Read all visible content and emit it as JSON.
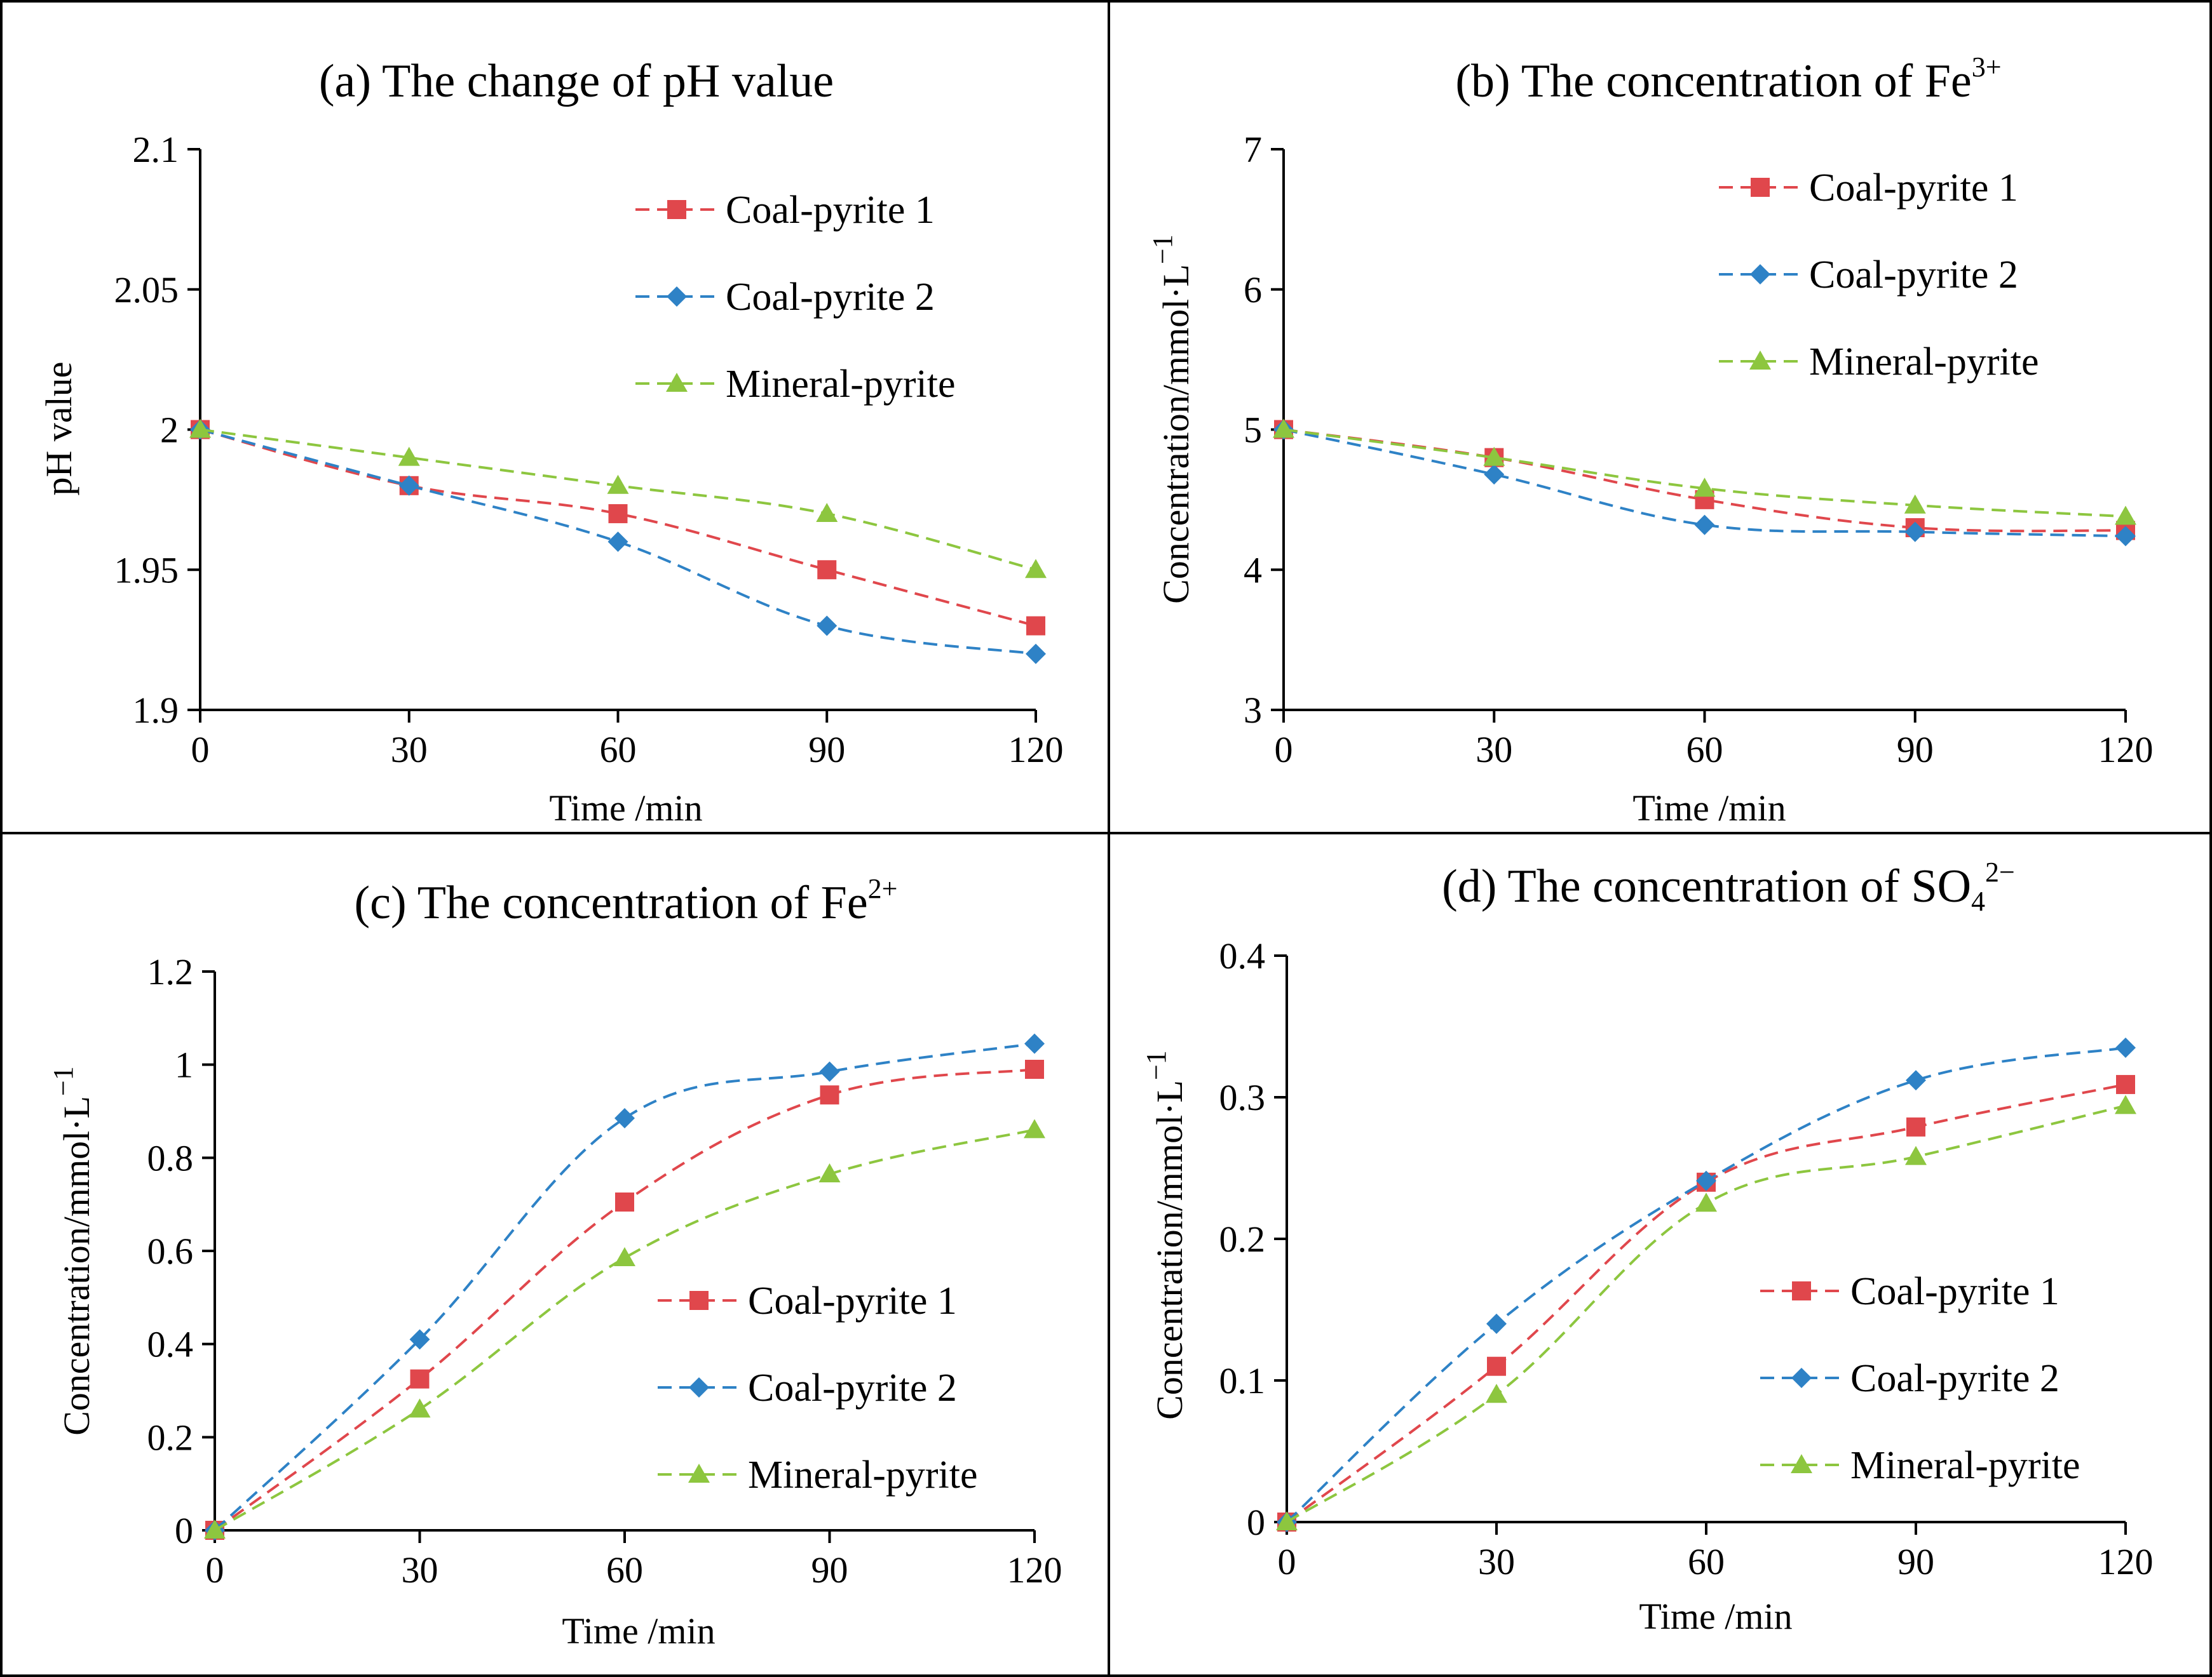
{
  "chart_data": [
    {
      "type": "line",
      "title": "(a) The change of pH value",
      "xlabel": "Time /min",
      "ylabel": "pH value",
      "x": [
        0,
        30,
        60,
        90,
        120
      ],
      "x_tick_labels": [
        "0",
        "30",
        "60",
        "90",
        "120"
      ],
      "ylim": [
        1.9,
        2.1
      ],
      "y_ticks": [
        1.9,
        1.95,
        2,
        2.05,
        2.1
      ],
      "y_tick_labels": [
        "1.9",
        "1.95",
        "2",
        "2.05",
        "2.1"
      ],
      "legend_position": "top-right",
      "smooth": true,
      "series": [
        {
          "name": "Coal-pyrite 1",
          "values": [
            2.0,
            1.98,
            1.97,
            1.95,
            1.93
          ],
          "color": "#e0474c",
          "marker": "square"
        },
        {
          "name": "Coal-pyrite 2",
          "values": [
            2.0,
            1.98,
            1.96,
            1.93,
            1.92
          ],
          "color": "#2e82c6",
          "marker": "diamond"
        },
        {
          "name": "Mineral-pyrite",
          "values": [
            2.0,
            1.99,
            1.98,
            1.97,
            1.95
          ],
          "color": "#8dc63f",
          "marker": "triangle"
        }
      ]
    },
    {
      "type": "line",
      "title": "(b) The concentration of Fe",
      "title_superscript": "3+",
      "xlabel": "Time /min",
      "ylabel": "Concentration/mmol·L",
      "ylabel_superscript": "−1",
      "x": [
        0,
        30,
        60,
        90,
        120
      ],
      "x_tick_labels": [
        "0",
        "30",
        "60",
        "90",
        "120"
      ],
      "ylim": [
        3,
        7
      ],
      "y_ticks": [
        3,
        4,
        5,
        6,
        7
      ],
      "y_tick_labels": [
        "3",
        "4",
        "5",
        "6",
        "7"
      ],
      "legend_position": "top-right",
      "smooth": true,
      "series": [
        {
          "name": "Coal-pyrite 1",
          "values": [
            5.0,
            4.8,
            4.5,
            4.3,
            4.28
          ],
          "color": "#e0474c",
          "marker": "square"
        },
        {
          "name": "Coal-pyrite 2",
          "values": [
            5.0,
            4.68,
            4.32,
            4.27,
            4.24
          ],
          "color": "#2e82c6",
          "marker": "diamond"
        },
        {
          "name": "Mineral-pyrite",
          "values": [
            5.0,
            4.8,
            4.58,
            4.46,
            4.38
          ],
          "color": "#8dc63f",
          "marker": "triangle"
        }
      ]
    },
    {
      "type": "line",
      "title": "(c) The concentration of Fe",
      "title_superscript": "2+",
      "xlabel": "Time /min",
      "ylabel": "Concentration/mmol·L",
      "ylabel_superscript": "−1",
      "x": [
        0,
        30,
        60,
        90,
        120
      ],
      "x_tick_labels": [
        "0",
        "30",
        "60",
        "90",
        "120"
      ],
      "ylim": [
        0,
        1.2
      ],
      "y_ticks": [
        0,
        0.2,
        0.4,
        0.6,
        0.8,
        1,
        1.2
      ],
      "y_tick_labels": [
        "0",
        "0.2",
        "0.4",
        "0.6",
        "0.8",
        "1",
        "1.2"
      ],
      "legend_position": "bottom-right",
      "smooth": true,
      "series": [
        {
          "name": "Coal-pyrite 1",
          "values": [
            0.0,
            0.325,
            0.705,
            0.935,
            0.99
          ],
          "color": "#e0474c",
          "marker": "square"
        },
        {
          "name": "Coal-pyrite 2",
          "values": [
            0.0,
            0.41,
            0.885,
            0.985,
            1.045
          ],
          "color": "#2e82c6",
          "marker": "diamond"
        },
        {
          "name": "Mineral-pyrite",
          "values": [
            0.0,
            0.26,
            0.585,
            0.765,
            0.86
          ],
          "color": "#8dc63f",
          "marker": "triangle"
        }
      ]
    },
    {
      "type": "line",
      "title": "(d) The concentration of SO",
      "title_subscript": "4",
      "title_superscript": "2−",
      "xlabel": "Time /min",
      "ylabel": "Concentration/mmol·L",
      "ylabel_superscript": "−1",
      "x": [
        0,
        30,
        60,
        90,
        120
      ],
      "x_tick_labels": [
        "0",
        "30",
        "60",
        "90",
        "120"
      ],
      "ylim": [
        0,
        0.4
      ],
      "y_ticks": [
        0,
        0.1,
        0.2,
        0.3,
        0.4
      ],
      "y_tick_labels": [
        "0",
        "0.1",
        "0.2",
        "0.3",
        "0.4"
      ],
      "legend_position": "bottom-right",
      "smooth": true,
      "series": [
        {
          "name": "Coal-pyrite 1",
          "values": [
            0.0,
            0.11,
            0.24,
            0.279,
            0.309
          ],
          "color": "#e0474c",
          "marker": "square"
        },
        {
          "name": "Coal-pyrite 2",
          "values": [
            0.0,
            0.14,
            0.241,
            0.312,
            0.335
          ],
          "color": "#2e82c6",
          "marker": "diamond"
        },
        {
          "name": "Mineral-pyrite",
          "values": [
            0.0,
            0.09,
            0.225,
            0.258,
            0.294
          ],
          "color": "#8dc63f",
          "marker": "triangle"
        }
      ]
    }
  ]
}
